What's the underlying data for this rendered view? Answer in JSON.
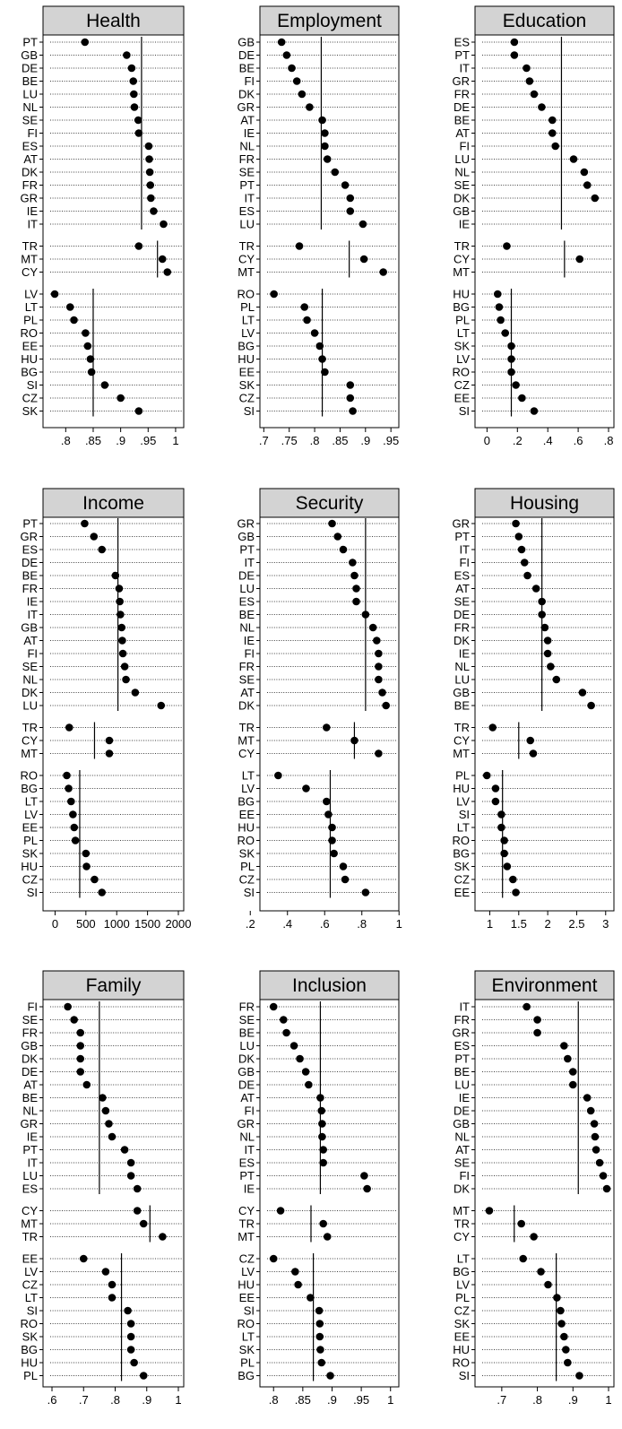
{
  "chart_data": [
    {
      "type": "scatter",
      "title": "Health",
      "groups": [
        {
          "labels": [
            "PT",
            "GB",
            "DE",
            "BE",
            "LU",
            "NL",
            "SE",
            "FI",
            "ES",
            "AT",
            "DK",
            "FR",
            "GR",
            "IE",
            "IT"
          ],
          "values": [
            0.835,
            0.911,
            0.92,
            0.923,
            0.924,
            0.925,
            0.932,
            0.933,
            0.951,
            0.952,
            0.953,
            0.954,
            0.955,
            0.96,
            0.978
          ],
          "mean": 0.938
        },
        {
          "labels": [
            "TR",
            "MT",
            "CY"
          ],
          "values": [
            0.933,
            0.976,
            0.985
          ],
          "mean": 0.967
        },
        {
          "labels": [
            "LV",
            "LT",
            "PL",
            "RO",
            "EE",
            "HU",
            "BG",
            "SI",
            "CZ",
            "SK"
          ],
          "values": [
            0.78,
            0.808,
            0.815,
            0.836,
            0.84,
            0.845,
            0.847,
            0.871,
            0.9,
            0.933
          ],
          "mean": 0.85
        }
      ],
      "ticks": [
        0.8,
        0.85,
        0.9,
        0.95,
        1
      ],
      "tick_labels": [
        ".8",
        ".85",
        ".9",
        ".95",
        "1"
      ],
      "xlim": [
        0.775,
        1.005
      ]
    },
    {
      "type": "scatter",
      "title": "Employment",
      "groups": [
        {
          "labels": [
            "GB",
            "DE",
            "BE",
            "FI",
            "DK",
            "GR",
            "AT",
            "IE",
            "NL",
            "FR",
            "SE",
            "PT",
            "IT",
            "ES",
            "LU"
          ],
          "values": [
            0.735,
            0.745,
            0.755,
            0.765,
            0.775,
            0.79,
            0.815,
            0.82,
            0.82,
            0.825,
            0.84,
            0.86,
            0.87,
            0.87,
            0.895
          ],
          "mean": 0.813
        },
        {
          "labels": [
            "TR",
            "CY",
            "MT"
          ],
          "values": [
            0.77,
            0.897,
            0.935
          ],
          "mean": 0.868
        },
        {
          "labels": [
            "RO",
            "PL",
            "LT",
            "LV",
            "BG",
            "HU",
            "EE",
            "SK",
            "CZ",
            "SI"
          ],
          "values": [
            0.72,
            0.78,
            0.785,
            0.8,
            0.81,
            0.815,
            0.82,
            0.87,
            0.87,
            0.875
          ],
          "mean": 0.815
        }
      ],
      "ticks": [
        0.7,
        0.75,
        0.8,
        0.85,
        0.9,
        0.95
      ],
      "tick_labels": [
        ".7",
        ".75",
        ".8",
        ".85",
        ".9",
        ".95"
      ],
      "xlim": [
        0.71,
        0.955
      ]
    },
    {
      "type": "scatter",
      "title": "Education",
      "groups": [
        {
          "labels": [
            "ES",
            "PT",
            "IT",
            "GR",
            "FR",
            "DE",
            "BE",
            "AT",
            "FI",
            "LU",
            "NL",
            "SE",
            "DK",
            "GB",
            "IE"
          ],
          "values": [
            0.18,
            0.18,
            0.26,
            0.28,
            0.31,
            0.36,
            0.43,
            0.43,
            0.45,
            0.57,
            0.64,
            0.66,
            0.71,
            null,
            null
          ],
          "mean": 0.49
        },
        {
          "labels": [
            "TR",
            "CY",
            "MT"
          ],
          "values": [
            0.13,
            0.61,
            null
          ],
          "mean": 0.51
        },
        {
          "labels": [
            "HU",
            "BG",
            "PL",
            "LT",
            "SK",
            "LV",
            "RO",
            "CZ",
            "EE",
            "SI"
          ],
          "values": [
            0.07,
            0.08,
            0.09,
            0.12,
            0.16,
            0.16,
            0.16,
            0.19,
            0.23,
            0.31
          ],
          "mean": 0.16
        }
      ],
      "ticks": [
        0,
        0.2,
        0.4,
        0.6,
        0.8
      ],
      "tick_labels": [
        "0",
        ".2",
        ".4",
        ".6",
        ".8"
      ],
      "xlim": [
        -0.02,
        0.8
      ]
    },
    {
      "type": "scatter",
      "title": "Income",
      "groups": [
        {
          "labels": [
            "PT",
            "GR",
            "ES",
            "DE",
            "BE",
            "FR",
            "IE",
            "IT",
            "GB",
            "AT",
            "FI",
            "SE",
            "NL",
            "DK",
            "LU"
          ],
          "values": [
            480,
            630,
            760,
            null,
            980,
            1040,
            1050,
            1060,
            1080,
            1090,
            1100,
            1130,
            1150,
            1300,
            1720
          ],
          "mean": 1020
        },
        {
          "labels": [
            "TR",
            "CY",
            "MT"
          ],
          "values": [
            230,
            880,
            880
          ],
          "mean": 640
        },
        {
          "labels": [
            "RO",
            "BG",
            "LT",
            "LV",
            "EE",
            "PL",
            "SK",
            "HU",
            "CZ",
            "SI"
          ],
          "values": [
            190,
            220,
            260,
            290,
            310,
            330,
            500,
            510,
            640,
            760
          ],
          "mean": 400
        }
      ],
      "ticks": [
        0,
        500,
        1000,
        1500,
        2000
      ],
      "tick_labels": [
        "0",
        "500",
        "1000",
        "1500",
        "2000"
      ],
      "xlim": [
        -50,
        2000
      ]
    },
    {
      "type": "scatter",
      "title": "Security",
      "groups": [
        {
          "labels": [
            "GR",
            "GB",
            "PT",
            "IT",
            "DE",
            "LU",
            "ES",
            "BE",
            "NL",
            "IE",
            "FI",
            "FR",
            "SE",
            "AT",
            "DK"
          ],
          "values": [
            0.64,
            0.67,
            0.7,
            0.75,
            0.76,
            0.77,
            0.77,
            0.82,
            0.86,
            0.88,
            0.89,
            0.89,
            0.89,
            0.91,
            0.93
          ],
          "mean": 0.82
        },
        {
          "labels": [
            "TR",
            "MT",
            "CY"
          ],
          "values": [
            0.61,
            0.76,
            0.89
          ],
          "mean": 0.76
        },
        {
          "labels": [
            "LT",
            "LV",
            "BG",
            "EE",
            "HU",
            "RO",
            "SK",
            "PL",
            "CZ",
            "SI"
          ],
          "values": [
            0.35,
            0.5,
            0.61,
            0.62,
            0.64,
            0.64,
            0.65,
            0.7,
            0.71,
            0.82
          ],
          "mean": 0.63
        }
      ],
      "ticks": [
        0.2,
        0.4,
        0.6,
        0.8,
        1
      ],
      "tick_labels": [
        ".2",
        ".4",
        ".6",
        ".8",
        "1"
      ],
      "xlim": [
        0.3,
        0.97
      ]
    },
    {
      "type": "scatter",
      "title": "Housing",
      "groups": [
        {
          "labels": [
            "GR",
            "PT",
            "IT",
            "FI",
            "ES",
            "AT",
            "SE",
            "DE",
            "FR",
            "DK",
            "IE",
            "NL",
            "LU",
            "GB",
            "BE"
          ],
          "values": [
            1.45,
            1.5,
            1.55,
            1.6,
            1.65,
            1.8,
            1.9,
            1.9,
            1.95,
            2.0,
            2.0,
            2.05,
            2.15,
            2.6,
            2.75
          ],
          "mean": 1.9
        },
        {
          "labels": [
            "TR",
            "CY",
            "MT"
          ],
          "values": [
            1.05,
            1.7,
            1.75
          ],
          "mean": 1.5
        },
        {
          "labels": [
            "PL",
            "HU",
            "LV",
            "SI",
            "LT",
            "RO",
            "BG",
            "SK",
            "CZ",
            "EE"
          ],
          "values": [
            0.95,
            1.1,
            1.1,
            1.2,
            1.2,
            1.25,
            1.25,
            1.3,
            1.4,
            1.45
          ],
          "mean": 1.22
        }
      ],
      "ticks": [
        1,
        1.5,
        2,
        2.5,
        3
      ],
      "tick_labels": [
        "1",
        "1.5",
        "2",
        "2.5",
        "3"
      ],
      "xlim": [
        0.9,
        3.05
      ]
    },
    {
      "type": "scatter",
      "title": "Family",
      "groups": [
        {
          "labels": [
            "FI",
            "SE",
            "FR",
            "GB",
            "DK",
            "DE",
            "AT",
            "BE",
            "NL",
            "GR",
            "IE",
            "PT",
            "IT",
            "LU",
            "ES"
          ],
          "values": [
            0.65,
            0.67,
            0.69,
            0.69,
            0.69,
            0.69,
            0.71,
            0.76,
            0.77,
            0.78,
            0.79,
            0.83,
            0.85,
            0.85,
            0.87
          ],
          "mean": 0.75
        },
        {
          "labels": [
            "CY",
            "MT",
            "TR"
          ],
          "values": [
            0.87,
            0.89,
            0.95
          ],
          "mean": 0.91
        },
        {
          "labels": [
            "EE",
            "LV",
            "CZ",
            "LT",
            "SI",
            "RO",
            "SK",
            "BG",
            "HU",
            "PL"
          ],
          "values": [
            0.7,
            0.77,
            0.79,
            0.79,
            0.84,
            0.85,
            0.85,
            0.85,
            0.86,
            0.89
          ],
          "mean": 0.82
        }
      ],
      "ticks": [
        0.6,
        0.7,
        0.8,
        0.9,
        1
      ],
      "tick_labels": [
        ".6",
        ".7",
        ".8",
        ".9",
        "1"
      ],
      "xlim": [
        0.6,
        1.0
      ]
    },
    {
      "type": "scatter",
      "title": "Inclusion",
      "groups": [
        {
          "labels": [
            "FR",
            "SE",
            "BE",
            "LU",
            "DK",
            "GB",
            "DE",
            "AT",
            "FI",
            "GR",
            "NL",
            "IT",
            "ES",
            "PT",
            "IE"
          ],
          "values": [
            0.8,
            0.817,
            0.822,
            0.835,
            0.845,
            0.855,
            0.86,
            0.88,
            0.882,
            0.883,
            0.883,
            0.885,
            0.885,
            0.955,
            0.96
          ],
          "mean": 0.88
        },
        {
          "labels": [
            "CY",
            "TR",
            "MT"
          ],
          "values": [
            0.812,
            0.885,
            0.892
          ],
          "mean": 0.864
        },
        {
          "labels": [
            "CZ",
            "LV",
            "HU",
            "EE",
            "SI",
            "RO",
            "LT",
            "SK",
            "PL",
            "BG"
          ],
          "values": [
            0.8,
            0.837,
            0.842,
            0.863,
            0.878,
            0.879,
            0.879,
            0.88,
            0.882,
            0.897
          ],
          "mean": 0.868
        }
      ],
      "ticks": [
        0.8,
        0.85,
        0.9,
        0.95,
        1
      ],
      "tick_labels": [
        ".8",
        ".85",
        ".9",
        ".95",
        "1"
      ],
      "xlim": [
        0.792,
        1.005
      ]
    },
    {
      "type": "scatter",
      "title": "Environment",
      "groups": [
        {
          "labels": [
            "IT",
            "FR",
            "GR",
            "ES",
            "PT",
            "BE",
            "LU",
            "IE",
            "DE",
            "GB",
            "NL",
            "AT",
            "SE",
            "FI",
            "DK"
          ],
          "values": [
            0.77,
            0.8,
            0.8,
            0.875,
            0.885,
            0.9,
            0.9,
            0.94,
            0.95,
            0.96,
            0.962,
            0.965,
            0.975,
            0.985,
            0.995
          ],
          "mean": 0.915
        },
        {
          "labels": [
            "MT",
            "TR",
            "CY"
          ],
          "values": [
            0.665,
            0.755,
            0.79
          ],
          "mean": 0.735
        },
        {
          "labels": [
            "LT",
            "BG",
            "LV",
            "PL",
            "CZ",
            "SK",
            "EE",
            "HU",
            "RO",
            "SI"
          ],
          "values": [
            0.76,
            0.81,
            0.83,
            0.855,
            0.865,
            0.868,
            0.875,
            0.88,
            0.885,
            0.918
          ],
          "mean": 0.853
        }
      ],
      "ticks": [
        0.7,
        0.8,
        0.9,
        1
      ],
      "tick_labels": [
        ".7",
        ".8",
        ".9",
        "1"
      ],
      "xlim": [
        0.65,
        1.0
      ]
    }
  ]
}
